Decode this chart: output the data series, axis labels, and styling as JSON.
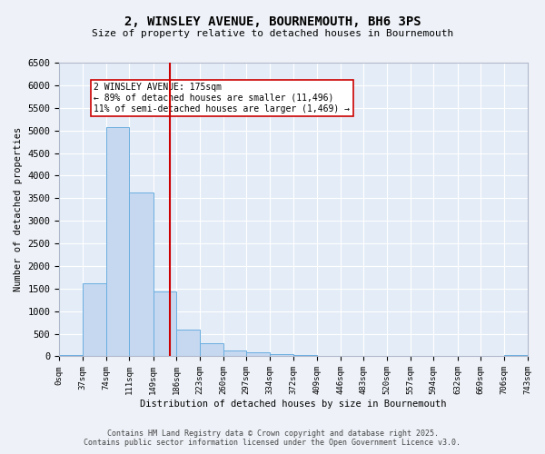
{
  "title_line1": "2, WINSLEY AVENUE, BOURNEMOUTH, BH6 3PS",
  "title_line2": "Size of property relative to detached houses in Bournemouth",
  "xlabel": "Distribution of detached houses by size in Bournemouth",
  "ylabel": "Number of detached properties",
  "bar_edges": [
    0,
    37,
    74,
    111,
    149,
    186,
    223,
    260,
    297,
    334,
    372,
    409,
    446,
    483,
    520,
    557,
    594,
    632,
    669,
    706,
    743
  ],
  "bar_heights": [
    30,
    1620,
    5080,
    3620,
    1430,
    600,
    300,
    140,
    80,
    40,
    20,
    10,
    5,
    3,
    2,
    1,
    1,
    0,
    0,
    30
  ],
  "bar_color": "#c5d8f0",
  "bar_edgecolor": "#6aaee0",
  "property_size": 175,
  "vline_color": "#cc0000",
  "annotation_text": "2 WINSLEY AVENUE: 175sqm\n← 89% of detached houses are smaller (11,496)\n11% of semi-detached houses are larger (1,469) →",
  "annotation_box_edgecolor": "#cc0000",
  "annotation_box_facecolor": "#ffffff",
  "ylim": [
    0,
    6500
  ],
  "yticks": [
    0,
    500,
    1000,
    1500,
    2000,
    2500,
    3000,
    3500,
    4000,
    4500,
    5000,
    5500,
    6000,
    6500
  ],
  "tick_labels": [
    "0sqm",
    "37sqm",
    "74sqm",
    "111sqm",
    "149sqm",
    "186sqm",
    "223sqm",
    "260sqm",
    "297sqm",
    "334sqm",
    "372sqm",
    "409sqm",
    "446sqm",
    "483sqm",
    "520sqm",
    "557sqm",
    "594sqm",
    "632sqm",
    "669sqm",
    "706sqm",
    "743sqm"
  ],
  "footer_line1": "Contains HM Land Registry data © Crown copyright and database right 2025.",
  "footer_line2": "Contains public sector information licensed under the Open Government Licence v3.0.",
  "bg_color": "#eef2f8",
  "plot_bg_color": "#e4ecf7"
}
